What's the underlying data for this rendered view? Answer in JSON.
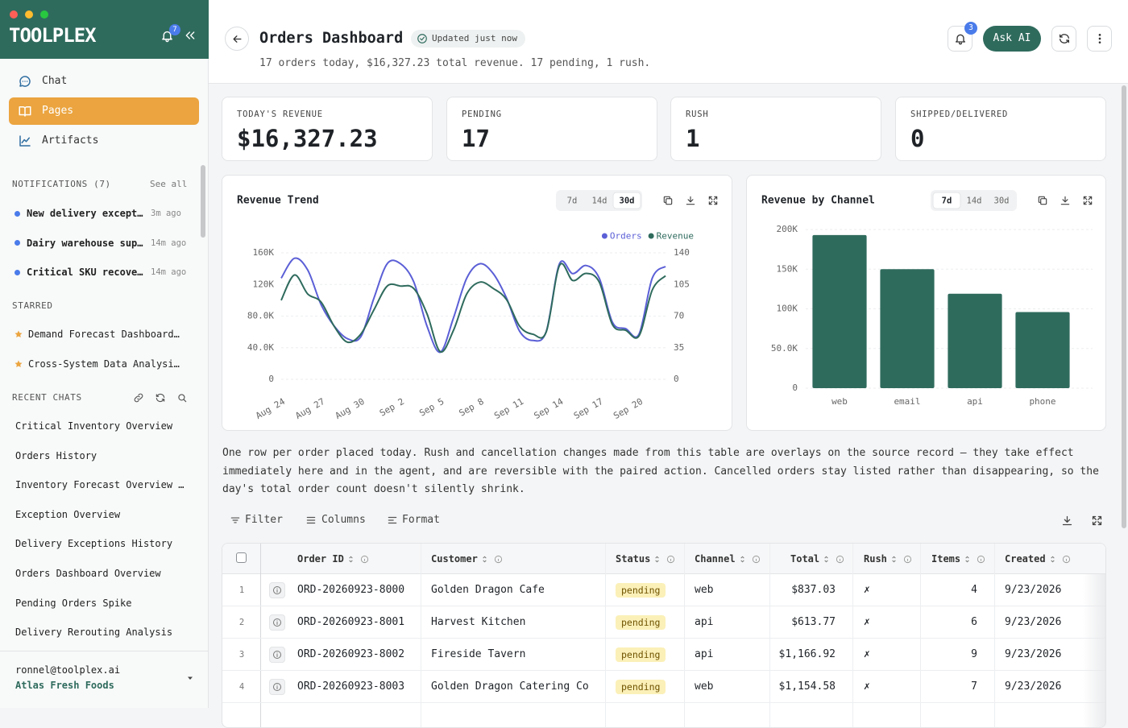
{
  "sidebar": {
    "brand": "TOOLPLEX",
    "notification_badge": "7",
    "nav": [
      "Chat",
      "Pages",
      "Artifacts"
    ],
    "active_nav": "Pages",
    "notifications": {
      "title": "NOTIFICATIONS (7)",
      "see_all": "See all",
      "items": [
        {
          "text": "New delivery except…",
          "time": "3m ago"
        },
        {
          "text": "Dairy warehouse sup…",
          "time": "14m ago"
        },
        {
          "text": "Critical SKU recove…",
          "time": "14m ago"
        }
      ]
    },
    "starred": {
      "title": "STARRED",
      "items": [
        "Demand Forecast Dashboard…",
        "Cross-System Data Analysi…"
      ]
    },
    "recent_chats": {
      "title": "RECENT CHATS",
      "items": [
        "Critical Inventory Overview",
        "Orders History",
        "Inventory Forecast Overview …",
        "Exception Overview",
        "Delivery Exceptions History",
        "Orders Dashboard Overview",
        "Pending Orders Spike",
        "Delivery Rerouting Analysis"
      ]
    },
    "user": {
      "email": "ronnel@toolplex.ai",
      "org": "Atlas Fresh Foods"
    }
  },
  "header": {
    "title": "Orders Dashboard",
    "status": "Updated just now",
    "summary": "17 orders today, $16,327.23 total revenue. 17 pending, 1 rush.",
    "notification_badge": "3",
    "ask_ai": "Ask AI"
  },
  "kpis": [
    {
      "label": "TODAY'S REVENUE",
      "value": "$16,327.23"
    },
    {
      "label": "PENDING",
      "value": "17"
    },
    {
      "label": "RUSH",
      "value": "1"
    },
    {
      "label": "SHIPPED/DELIVERED",
      "value": "0"
    }
  ],
  "chart_data": [
    {
      "type": "line",
      "title": "Revenue Trend",
      "range_options": [
        "7d",
        "14d",
        "30d"
      ],
      "selected_range": "30d",
      "categories": [
        "Aug 24",
        null,
        null,
        "Aug 27",
        null,
        null,
        "Aug 30",
        null,
        null,
        "Sep 2",
        null,
        null,
        "Sep 5",
        null,
        null,
        "Sep 8",
        null,
        null,
        "Sep 11",
        null,
        null,
        "Sep 14",
        null,
        null,
        "Sep 17",
        null,
        null,
        "Sep 20",
        null,
        null
      ],
      "series": [
        {
          "name": "Orders",
          "color": "#5b5fd6",
          "axis": "y2",
          "values": [
            112,
            134,
            121,
            83,
            59,
            45,
            47,
            90,
            128,
            128,
            108,
            59,
            30,
            68,
            112,
            128,
            117,
            90,
            53,
            43,
            53,
            128,
            117,
            126,
            112,
            63,
            56,
            50,
            112,
            125
          ]
        },
        {
          "name": "Revenue",
          "color": "#2f6b5d",
          "values": [
            100000,
            132000,
            108000,
            98000,
            67000,
            47000,
            57000,
            88000,
            118000,
            118000,
            115000,
            83000,
            35000,
            62000,
            108000,
            123000,
            115000,
            101000,
            67000,
            57000,
            60000,
            144000,
            125000,
            134000,
            123000,
            69000,
            62000,
            55000,
            113000,
            131000
          ]
        }
      ],
      "ylim": [
        0,
        160000
      ],
      "yticks": [
        0,
        {
          "value": 40000,
          "label": "40.0K"
        },
        {
          "value": 80000,
          "label": "80.0K"
        },
        {
          "value": 120000,
          "label": "120K"
        },
        {
          "value": 160000,
          "label": "160K"
        }
      ],
      "y2lim": [
        0,
        140
      ],
      "y2ticks": [
        0,
        35,
        70,
        105,
        140
      ],
      "grid": true,
      "legend": "top-right"
    },
    {
      "type": "bar",
      "title": "Revenue by Channel",
      "range_options": [
        "7d",
        "14d",
        "30d"
      ],
      "selected_range": "7d",
      "categories": [
        "web",
        "email",
        "api",
        "phone"
      ],
      "values": [
        193000,
        150000,
        119000,
        96000
      ],
      "color": "#2f6b5d",
      "ylim": [
        0,
        200000
      ],
      "yticks": [
        0,
        {
          "value": 50000,
          "label": "50.0K"
        },
        {
          "value": 100000,
          "label": "100K"
        },
        {
          "value": 150000,
          "label": "150K"
        },
        {
          "value": 200000,
          "label": "200K"
        }
      ],
      "grid": true
    }
  ],
  "description": "One row per order placed today. Rush and cancellation changes made from this table are overlays on the source record — they take effect immediately here and in the agent, and are reversible with the paired action. Cancelled orders stay listed rather than disappearing, so the day's total order count doesn't silently shrink.",
  "toolbar": [
    "Filter",
    "Columns",
    "Format"
  ],
  "table": {
    "columns": [
      "Order ID",
      "Customer",
      "Status",
      "Channel",
      "Total",
      "Rush",
      "Items",
      "Created"
    ],
    "rows": [
      [
        "1",
        "ORD-20260923-8000",
        "Golden Dragon Cafe",
        "pending",
        "web",
        "$837.03",
        "✗",
        "4",
        "9/23/2026"
      ],
      [
        "2",
        "ORD-20260923-8001",
        "Harvest Kitchen",
        "pending",
        "api",
        "$613.77",
        "✗",
        "6",
        "9/23/2026"
      ],
      [
        "3",
        "ORD-20260923-8002",
        "Fireside Tavern",
        "pending",
        "api",
        "$1,166.92",
        "✗",
        "9",
        "9/23/2026"
      ],
      [
        "4",
        "ORD-20260923-8003",
        "Golden Dragon Catering Co",
        "pending",
        "web",
        "$1,154.58",
        "✗",
        "7",
        "9/23/2026"
      ]
    ]
  }
}
